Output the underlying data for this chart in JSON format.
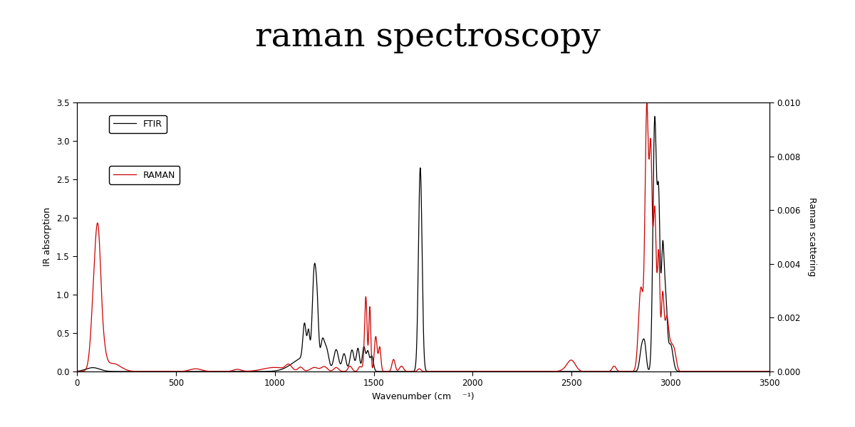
{
  "title": "raman spectroscopy",
  "title_fontsize": 34,
  "title_font_family": "serif",
  "xlabel": "Wavenumber (cm    ⁻¹)",
  "ylabel_left": "IR absorption",
  "ylabel_right": "Raman scattering",
  "xlim": [
    0,
    3500
  ],
  "ylim_left": [
    0.0,
    3.5
  ],
  "ylim_right": [
    0.0,
    0.01
  ],
  "xticks": [
    0,
    500,
    1000,
    1500,
    2000,
    2500,
    3000,
    3500
  ],
  "yticks_left": [
    0.0,
    0.5,
    1.0,
    1.5,
    2.0,
    2.5,
    3.0,
    3.5
  ],
  "yticks_right": [
    0.0,
    0.002,
    0.004,
    0.006,
    0.008,
    0.01
  ],
  "ftir_color": "#000000",
  "raman_color": "#cc0000",
  "background_color": "#ffffff",
  "legend_labels": [
    "FTIR",
    "RAMAN"
  ],
  "fig_width": 12.0,
  "fig_height": 6.0
}
